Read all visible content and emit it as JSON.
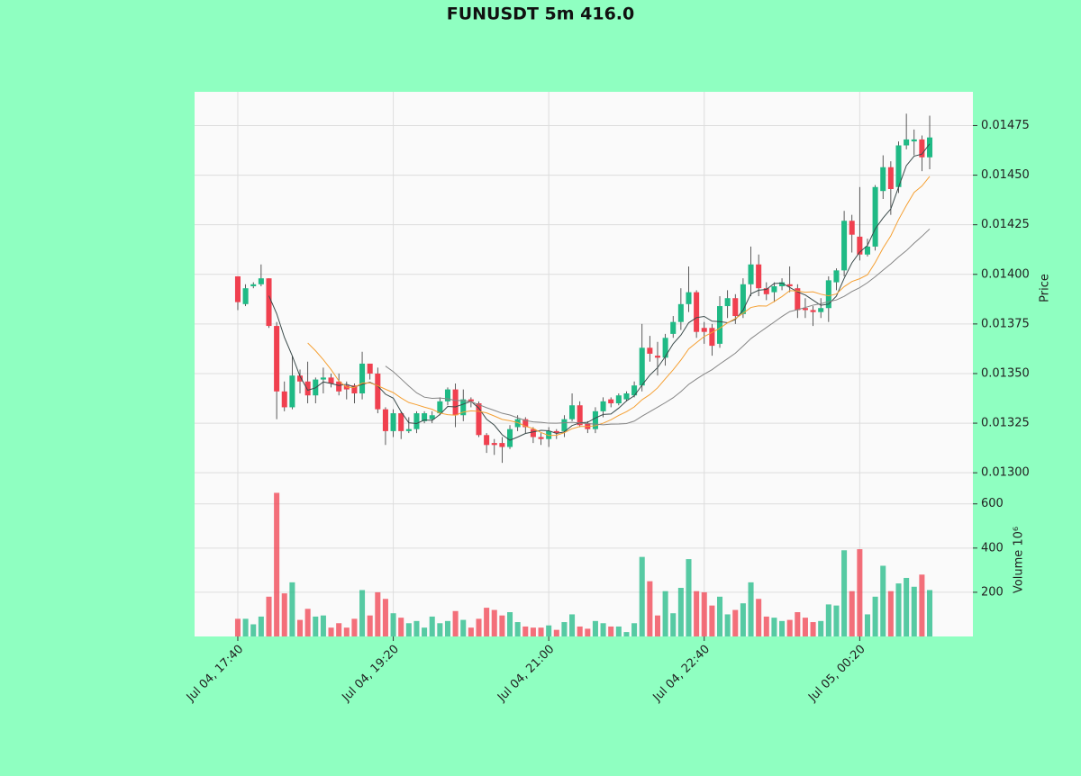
{
  "chart_data": {
    "type": "candlestick",
    "title": "FUNUSDT 5m 416.0",
    "ylabel": "Price",
    "volume_label": "Volume  10⁶",
    "grid": true,
    "up_color": "#1fba85",
    "down_color": "#f0404f",
    "categories": [
      "Jul 04, 17:40",
      null,
      null,
      null,
      null,
      null,
      null,
      null,
      null,
      null,
      null,
      null,
      null,
      null,
      null,
      null,
      null,
      null,
      null,
      null,
      "Jul 04, 19:20",
      null,
      null,
      null,
      null,
      null,
      null,
      null,
      null,
      null,
      null,
      null,
      null,
      null,
      null,
      null,
      null,
      null,
      null,
      null,
      "Jul 04, 21:00",
      null,
      null,
      null,
      null,
      null,
      null,
      null,
      null,
      null,
      null,
      null,
      null,
      null,
      null,
      null,
      null,
      null,
      null,
      null,
      "Jul 04, 22:40",
      null,
      null,
      null,
      null,
      null,
      null,
      null,
      null,
      null,
      null,
      null,
      null,
      null,
      null,
      null,
      null,
      null,
      null,
      null,
      "Jul 05, 00:20",
      null,
      null,
      null,
      null,
      null,
      null,
      null,
      null,
      null
    ],
    "open": [
      0.01399,
      0.01385,
      0.01394,
      0.01395,
      0.01398,
      0.01374,
      0.01341,
      0.01333,
      0.01349,
      0.01346,
      0.01339,
      0.01347,
      0.01348,
      0.01346,
      0.01344,
      0.01344,
      0.0134,
      0.01355,
      0.0135,
      0.01332,
      0.01321,
      0.0133,
      0.01321,
      0.01322,
      0.01326,
      0.01327,
      0.0133,
      0.01336,
      0.01342,
      0.01329,
      0.01337,
      0.01335,
      0.01319,
      0.01315,
      0.01315,
      0.01313,
      0.01323,
      0.01327,
      0.01322,
      0.01318,
      0.01317,
      0.01321,
      0.01321,
      0.01327,
      0.01334,
      0.01325,
      0.01322,
      0.01331,
      0.01337,
      0.01335,
      0.01337,
      0.01339,
      0.01344,
      0.01363,
      0.01359,
      0.01358,
      0.0137,
      0.01376,
      0.01385,
      0.01391,
      0.01373,
      0.01373,
      0.01365,
      0.01384,
      0.01388,
      0.0138,
      0.01395,
      0.01405,
      0.01393,
      0.01391,
      0.01394,
      0.01395,
      0.01393,
      0.01383,
      0.01382,
      0.01381,
      0.01383,
      0.01396,
      0.01402,
      0.01427,
      0.01419,
      0.0141,
      0.01414,
      0.01442,
      0.01454,
      0.01444,
      0.01465,
      0.01467,
      0.01468,
      0.01459
    ],
    "high": [
      0.01399,
      0.01395,
      0.01396,
      0.01405,
      0.01398,
      0.01376,
      0.01346,
      0.01359,
      0.01352,
      0.01356,
      0.01348,
      0.01353,
      0.0135,
      0.0135,
      0.01346,
      0.01345,
      0.01361,
      0.01355,
      0.01353,
      0.01333,
      0.01332,
      0.01331,
      0.01328,
      0.01331,
      0.01331,
      0.01331,
      0.01338,
      0.01343,
      0.01345,
      0.01342,
      0.01338,
      0.01336,
      0.0132,
      0.01317,
      0.01318,
      0.01324,
      0.01329,
      0.01328,
      0.01323,
      0.0132,
      0.01323,
      0.01322,
      0.01329,
      0.0134,
      0.01336,
      0.01326,
      0.01333,
      0.01338,
      0.01338,
      0.0134,
      0.01341,
      0.01346,
      0.01375,
      0.01369,
      0.01366,
      0.0137,
      0.01379,
      0.01393,
      0.01404,
      0.01392,
      0.01376,
      0.01375,
      0.01389,
      0.01392,
      0.0139,
      0.01398,
      0.01414,
      0.0141,
      0.01396,
      0.01396,
      0.01398,
      0.01404,
      0.01395,
      0.01388,
      0.01384,
      0.01388,
      0.01399,
      0.01403,
      0.01432,
      0.0143,
      0.01444,
      0.01418,
      0.01445,
      0.0146,
      0.01457,
      0.01467,
      0.01481,
      0.01473,
      0.0147,
      0.0148
    ],
    "low": [
      0.01382,
      0.01384,
      0.01393,
      0.01394,
      0.01373,
      0.01327,
      0.01331,
      0.01332,
      0.0134,
      0.01335,
      0.01335,
      0.0134,
      0.01343,
      0.01339,
      0.01337,
      0.01335,
      0.01337,
      0.01347,
      0.0133,
      0.01314,
      0.01318,
      0.01317,
      0.0132,
      0.0132,
      0.01325,
      0.01325,
      0.01329,
      0.01334,
      0.01323,
      0.01326,
      0.01333,
      0.01318,
      0.0131,
      0.01309,
      0.01305,
      0.01312,
      0.01321,
      0.0132,
      0.01315,
      0.01314,
      0.01313,
      0.01317,
      0.01318,
      0.01326,
      0.01323,
      0.0132,
      0.0132,
      0.01328,
      0.01333,
      0.01334,
      0.01336,
      0.01338,
      0.01341,
      0.01356,
      0.01349,
      0.01354,
      0.01368,
      0.01372,
      0.01381,
      0.01368,
      0.01365,
      0.01359,
      0.01363,
      0.01378,
      0.01375,
      0.01378,
      0.01389,
      0.01389,
      0.01387,
      0.01386,
      0.01392,
      0.01391,
      0.01378,
      0.01378,
      0.01374,
      0.01378,
      0.01376,
      0.01392,
      0.01399,
      0.01411,
      0.01407,
      0.01409,
      0.01412,
      0.01438,
      0.0143,
      0.01441,
      0.01463,
      0.0146,
      0.01452,
      0.01453
    ],
    "close": [
      0.01386,
      0.01393,
      0.01395,
      0.01398,
      0.01374,
      0.01341,
      0.01333,
      0.01349,
      0.01346,
      0.01339,
      0.01347,
      0.01348,
      0.01345,
      0.01341,
      0.01342,
      0.0134,
      0.01355,
      0.0135,
      0.01332,
      0.01321,
      0.0133,
      0.01321,
      0.01322,
      0.0133,
      0.0133,
      0.01329,
      0.01336,
      0.01342,
      0.01329,
      0.01337,
      0.01336,
      0.01319,
      0.01314,
      0.01314,
      0.01313,
      0.01322,
      0.01327,
      0.01323,
      0.01318,
      0.01317,
      0.01321,
      0.0132,
      0.01327,
      0.01334,
      0.01324,
      0.01322,
      0.01331,
      0.01336,
      0.01335,
      0.01339,
      0.0134,
      0.01344,
      0.01363,
      0.0136,
      0.01358,
      0.01368,
      0.01376,
      0.01385,
      0.01391,
      0.01371,
      0.01371,
      0.01364,
      0.01384,
      0.01388,
      0.01379,
      0.01395,
      0.01405,
      0.01393,
      0.0139,
      0.01394,
      0.01396,
      0.01394,
      0.01382,
      0.01382,
      0.01381,
      0.01383,
      0.01397,
      0.01402,
      0.01427,
      0.0142,
      0.0141,
      0.01414,
      0.01444,
      0.01454,
      0.01443,
      0.01465,
      0.01468,
      0.01468,
      0.01459,
      0.01469
    ],
    "volume": [
      80,
      80,
      55,
      90,
      180,
      650,
      195,
      245,
      75,
      125,
      90,
      95,
      40,
      60,
      40,
      80,
      210,
      95,
      200,
      170,
      105,
      85,
      60,
      70,
      40,
      90,
      60,
      70,
      115,
      75,
      40,
      80,
      130,
      120,
      95,
      110,
      65,
      45,
      40,
      40,
      50,
      30,
      65,
      100,
      45,
      35,
      70,
      60,
      45,
      45,
      20,
      60,
      360,
      250,
      95,
      205,
      105,
      220,
      350,
      205,
      200,
      140,
      180,
      100,
      120,
      150,
      245,
      170,
      90,
      85,
      70,
      75,
      110,
      85,
      65,
      70,
      145,
      140,
      390,
      205,
      395,
      100,
      180,
      320,
      205,
      240,
      265,
      225,
      280,
      210
    ],
    "moving_averages": [
      {
        "color": "#3a4a4a",
        "values": [
          null,
          null,
          null,
          null,
          0.013892,
          0.013802,
          0.013682,
          0.01359,
          0.013486,
          0.013416,
          0.013428,
          0.013458,
          0.01345,
          0.01344,
          0.013446,
          0.013432,
          0.013446,
          0.013456,
          0.013438,
          0.013396,
          0.013376,
          0.013308,
          0.013252,
          0.013248,
          0.013266,
          0.013264,
          0.013294,
          0.013334,
          0.013332,
          0.013346,
          0.01336,
          0.013326,
          0.01327,
          0.01324,
          0.013192,
          0.013164,
          0.01318,
          0.013198,
          0.013206,
          0.013214,
          0.013212,
          0.013198,
          0.013206,
          0.013238,
          0.013252,
          0.013254,
          0.013276,
          0.013294,
          0.013296,
          0.013326,
          0.013362,
          0.013388,
          0.013442,
          0.013492,
          0.01353,
          0.013586,
          0.01365,
          0.013694,
          0.013756,
          0.013782,
          0.013788,
          0.013764,
          0.013762,
          0.013756,
          0.013772,
          0.01382,
          0.013902,
          0.01392,
          0.013924,
          0.013954,
          0.013956,
          0.013934,
          0.013912,
          0.013896,
          0.01387,
          0.013844,
          0.01385,
          0.01389,
          0.01398,
          0.014058,
          0.014112,
          0.014146,
          0.01423,
          0.014284,
          0.01433,
          0.01444,
          0.014548,
          0.014596,
          0.014606,
          0.014658
        ]
      },
      {
        "color": "#f5a033",
        "values": [
          null,
          null,
          null,
          null,
          null,
          null,
          null,
          null,
          null,
          0.013654,
          0.013615,
          0.01357,
          0.01352,
          0.013463,
          0.013431,
          0.01343,
          0.013452,
          0.013453,
          0.013439,
          0.013421,
          0.013404,
          0.013377,
          0.013354,
          0.013343,
          0.013331,
          0.01332,
          0.013301,
          0.013293,
          0.01329,
          0.013306,
          0.013312,
          0.01331,
          0.013302,
          0.013286,
          0.013269,
          0.013262,
          0.013253,
          0.013234,
          0.013223,
          0.013203,
          0.013188,
          0.013189,
          0.013202,
          0.013222,
          0.013233,
          0.013233,
          0.013237,
          0.01325,
          0.013267,
          0.013289,
          0.013308,
          0.013332,
          0.013368,
          0.013394,
          0.013428,
          0.013474,
          0.013519,
          0.013568,
          0.013624,
          0.013656,
          0.013687,
          0.013707,
          0.013728,
          0.013756,
          0.013777,
          0.013804,
          0.013833,
          0.013841,
          0.01384,
          0.013863,
          0.013888,
          0.013918,
          0.013916,
          0.01391,
          0.013912,
          0.0139,
          0.013892,
          0.013901,
          0.013938,
          0.013964,
          0.013978,
          0.013998,
          0.01406,
          0.014132,
          0.014194,
          0.014276,
          0.014347,
          0.014413,
          0.014445,
          0.014494
        ]
      },
      {
        "color": "#858585",
        "values": [
          null,
          null,
          null,
          null,
          null,
          null,
          null,
          null,
          null,
          null,
          null,
          null,
          null,
          null,
          null,
          null,
          null,
          null,
          null,
          0.0135375,
          0.0135095,
          0.0134735,
          0.013437,
          0.013403,
          0.013381,
          0.013375,
          0.0133765,
          0.013373,
          0.0133645,
          0.0133635,
          0.013358,
          0.0133435,
          0.013328,
          0.0133145,
          0.0133,
          0.013291,
          0.013277,
          0.0132635,
          0.0132565,
          0.0132545,
          0.01325,
          0.0132495,
          0.013252,
          0.013254,
          0.013251,
          0.0132475,
          0.013245,
          0.013242,
          0.013245,
          0.013246,
          0.013248,
          0.0132605,
          0.013285,
          0.013308,
          0.0133305,
          0.0133535,
          0.013378,
          0.013409,
          0.0134455,
          0.0134725,
          0.0134975,
          0.0135195,
          0.013548,
          0.013575,
          0.0136025,
          0.013639,
          0.013676,
          0.0137045,
          0.013732,
          0.0137595,
          0.0137875,
          0.0138125,
          0.013822,
          0.013833,
          0.0138445,
          0.013852,
          0.0138625,
          0.013871,
          0.013889,
          0.0139135,
          0.013933,
          0.013958,
          0.013988,
          0.014021,
          0.014053,
          0.014088,
          0.0141195,
          0.014157,
          0.0141915,
          0.014229
        ]
      }
    ],
    "ylim": [
      0.01291,
      0.01492
    ],
    "yticks": [
      {
        "value": 0.013,
        "label": "0.01300"
      },
      {
        "value": 0.01325,
        "label": "0.01325"
      },
      {
        "value": 0.0135,
        "label": "0.01350"
      },
      {
        "value": 0.01375,
        "label": "0.01375"
      },
      {
        "value": 0.014,
        "label": "0.01400"
      },
      {
        "value": 0.01425,
        "label": "0.01425"
      },
      {
        "value": 0.0145,
        "label": "0.01450"
      },
      {
        "value": 0.01475,
        "label": "0.01475"
      }
    ],
    "volume_ylim": [
      0,
      660
    ],
    "volume_yticks": [
      200,
      400,
      600
    ]
  }
}
